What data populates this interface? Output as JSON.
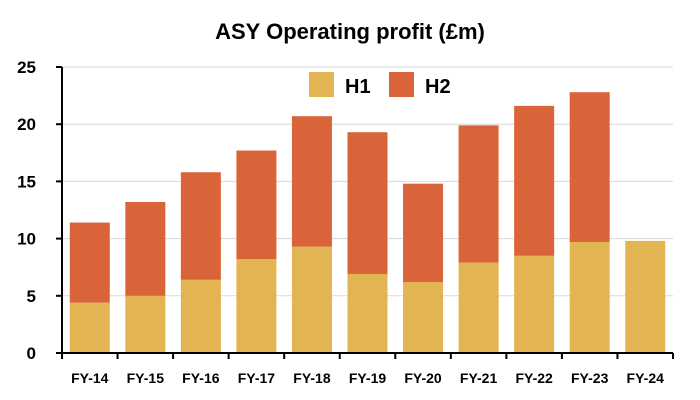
{
  "chart_data": {
    "type": "bar",
    "stacked": true,
    "title": "ASY Operating profit (£m)",
    "xlabel": "",
    "ylabel": "",
    "categories": [
      "FY-14",
      "FY-15",
      "FY-16",
      "FY-17",
      "FY-18",
      "FY-19",
      "FY-20",
      "FY-21",
      "FY-22",
      "FY-23",
      "FY-24"
    ],
    "series": [
      {
        "name": "H1",
        "color": "#E3B452",
        "values": [
          4.4,
          5.0,
          6.4,
          8.2,
          9.3,
          6.9,
          6.2,
          7.9,
          8.5,
          9.7,
          9.8
        ]
      },
      {
        "name": "H2",
        "color": "#D9643A",
        "values": [
          7.0,
          8.2,
          9.4,
          9.5,
          11.4,
          12.4,
          8.6,
          12.0,
          13.1,
          13.1,
          null
        ]
      }
    ],
    "ylim": [
      0,
      25
    ],
    "yticks": [
      "0",
      "5",
      "10",
      "15",
      "20",
      "25"
    ],
    "grid": true,
    "legend_position": "top-center"
  }
}
